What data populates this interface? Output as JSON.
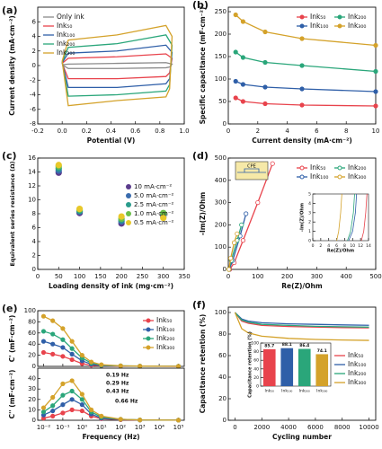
{
  "chart_data": [
    {
      "type": "line",
      "panel": "(a)",
      "xlabel": "Potential (V)",
      "ylabel": "Current density (mA·cm⁻²)",
      "xlim": [
        -0.2,
        1.0
      ],
      "xticks": [
        -0.2,
        {
          "value": 0,
          "label": "0.0"
        },
        0.2,
        0.4,
        0.6,
        0.8,
        {
          "value": 1,
          "label": "1.0"
        }
      ],
      "ylim": [
        -8,
        8
      ],
      "yticks": [
        -8,
        -6,
        -4,
        -2,
        0,
        2,
        4,
        6
      ],
      "legend": "upper left",
      "x": [
        0,
        0.05,
        0.45,
        0.85,
        0.9,
        0.88,
        0.85,
        0.45,
        0.05,
        0
      ],
      "series": [
        {
          "name": "Only ink",
          "color": "#8a8a8a",
          "values": [
            0.1,
            0.2,
            0.3,
            0.4,
            0.2,
            -0.2,
            -0.3,
            -0.4,
            -0.4,
            0.1
          ]
        },
        {
          "name": "Ink₅₀",
          "color": "#e8434c",
          "values": [
            0.3,
            1.0,
            1.2,
            1.6,
            1.0,
            -1.0,
            -1.5,
            -1.8,
            -1.8,
            0.3
          ]
        },
        {
          "name": "Ink₁₀₀",
          "color": "#2f5fa8",
          "values": [
            0.4,
            1.7,
            2.0,
            2.8,
            1.8,
            -1.8,
            -2.5,
            -3.0,
            -3.0,
            0.4
          ]
        },
        {
          "name": "Ink₂₀₀",
          "color": "#2aa67a",
          "values": [
            0.5,
            2.5,
            3.0,
            4.2,
            2.8,
            -2.6,
            -3.5,
            -4.0,
            -4.2,
            0.5
          ]
        },
        {
          "name": "Ink₃₀₀",
          "color": "#d4a22a",
          "values": [
            0.6,
            3.5,
            4.2,
            5.5,
            4.0,
            -3.2,
            -4.3,
            -4.8,
            -5.5,
            0.6
          ]
        }
      ]
    },
    {
      "type": "line",
      "markers": true,
      "panel": "(b)",
      "xlabel": "Current density (mA·cm⁻²)",
      "ylabel": "Specific capacitance (mF·cm⁻²)",
      "xlim": [
        0,
        10
      ],
      "xticks": [
        0,
        2,
        4,
        6,
        8,
        10
      ],
      "ylim": [
        0,
        260
      ],
      "yticks": [
        0,
        50,
        100,
        150,
        200,
        250
      ],
      "legend": "upper right",
      "legend_columns": 2,
      "x": [
        0.5,
        1,
        2.5,
        5,
        10
      ],
      "series": [
        {
          "name": "Ink₅₀",
          "color": "#e8434c",
          "values": [
            58,
            50,
            45,
            42,
            40
          ]
        },
        {
          "name": "Ink₁₀₀",
          "color": "#2f5fa8",
          "values": [
            95,
            88,
            82,
            78,
            72
          ]
        },
        {
          "name": "Ink₂₀₀",
          "color": "#2aa67a",
          "values": [
            160,
            148,
            137,
            130,
            117
          ]
        },
        {
          "name": "Ink₃₀₀",
          "color": "#d4a22a",
          "values": [
            243,
            228,
            205,
            190,
            175
          ]
        }
      ]
    },
    {
      "type": "scatter",
      "panel": "(c)",
      "xlabel": "Loading density of ink (mg·cm⁻²)",
      "ylabel": "Equivalent series resistance (Ω)",
      "xlim": [
        0,
        350
      ],
      "xticks": [
        0,
        50,
        100,
        150,
        200,
        250,
        300,
        350
      ],
      "ylim": [
        0,
        16
      ],
      "yticks": [
        0,
        2,
        4,
        6,
        8,
        10,
        12,
        14,
        16
      ],
      "legend": "center right",
      "x": [
        50,
        100,
        200,
        300
      ],
      "series": [
        {
          "name": "10 mA·cm⁻²",
          "color": "#5b3c8c",
          "values": [
            13.9,
            8.1,
            6.6,
            7.6
          ]
        },
        {
          "name": "5.0 mA·cm⁻²",
          "color": "#3a6cae",
          "values": [
            14.2,
            8.3,
            6.9,
            7.8
          ]
        },
        {
          "name": "2.5 mA·cm⁻²",
          "color": "#2a9c8c",
          "values": [
            14.5,
            8.4,
            7.1,
            8.0
          ]
        },
        {
          "name": "1.0 mA·cm⁻²",
          "color": "#6bbf4a",
          "values": [
            14.8,
            8.6,
            7.3,
            8.1
          ]
        },
        {
          "name": "0.5 mA·cm⁻²",
          "color": "#e8c82a",
          "values": [
            15.0,
            8.7,
            7.6,
            7.4
          ]
        }
      ]
    },
    {
      "type": "line",
      "markers": true,
      "panel": "(d)",
      "xlabel": "Re(Z)/Ohm",
      "ylabel": "-Im(Z)/Ohm",
      "xlim": [
        0,
        500
      ],
      "xticks": [
        0,
        100,
        200,
        300,
        400,
        500
      ],
      "ylim": [
        0,
        500
      ],
      "yticks": [
        0,
        100,
        200,
        300,
        400,
        500
      ],
      "legend": "upper right",
      "legend_columns": 2,
      "annotations": [
        "CPE"
      ],
      "series": [
        {
          "name": "Ink₅₀",
          "color": "#e8434c",
          "x": [
            5,
            20,
            50,
            100,
            150
          ],
          "values": [
            0,
            30,
            130,
            300,
            475
          ]
        },
        {
          "name": "Ink₁₀₀",
          "color": "#2f5fa8",
          "x": [
            3,
            15,
            40,
            60
          ],
          "values": [
            0,
            40,
            150,
            250
          ]
        },
        {
          "name": "Ink₂₀₀",
          "color": "#2aa67a",
          "x": [
            2,
            10,
            30,
            45
          ],
          "values": [
            0,
            40,
            130,
            200
          ]
        },
        {
          "name": "Ink₃₀₀",
          "color": "#d4a22a",
          "x": [
            2,
            8,
            20,
            30
          ],
          "values": [
            0,
            50,
            120,
            160
          ]
        }
      ]
    },
    {
      "type": "line",
      "xlabel": "Re(Z)/Ohm",
      "ylabel": "-Im(Z)/Ohm",
      "xlim": [
        0,
        14
      ],
      "xticks": [
        0,
        2,
        4,
        6,
        8,
        10,
        12,
        14
      ],
      "ylim": [
        0,
        5
      ],
      "yticks": [
        0,
        1,
        2,
        3,
        4,
        5
      ],
      "series": [
        {
          "name": "Ink₅₀",
          "color": "#e8434c",
          "x": [
            12.2,
            12.8,
            13.3,
            13.6
          ],
          "values": [
            0,
            1,
            3,
            5
          ]
        },
        {
          "name": "Ink₁₀₀",
          "color": "#2f5fa8",
          "x": [
            9.0,
            10.0,
            10.7,
            11.0
          ],
          "values": [
            0,
            1,
            3,
            5
          ]
        },
        {
          "name": "Ink₂₀₀",
          "color": "#2aa67a",
          "x": [
            8.7,
            9.5,
            10.2,
            10.5
          ],
          "values": [
            0,
            1,
            3,
            5
          ]
        },
        {
          "name": "Ink₃₀₀",
          "color": "#d4a22a",
          "x": [
            6.0,
            6.5,
            7.0,
            7.3
          ],
          "values": [
            0,
            1,
            3,
            5
          ]
        }
      ]
    },
    {
      "type": "line",
      "markers": true,
      "panel": "(e)",
      "ylabel": "C' (mF·cm⁻²)",
      "log_x": true,
      "show_xtick_labels": false,
      "xlim": [
        0.005,
        200000
      ],
      "xticks": [
        {
          "value": 0.01,
          "label": "10⁻²"
        },
        {
          "value": 0.1,
          "label": "10⁻¹"
        },
        {
          "value": 1,
          "label": "10⁰"
        },
        {
          "value": 10,
          "label": "10¹"
        },
        {
          "value": 100,
          "label": "10²"
        },
        {
          "value": 1000,
          "label": "10³"
        },
        {
          "value": 10000,
          "label": "10⁴"
        },
        {
          "value": 100000,
          "label": "10⁵"
        }
      ],
      "ylim": [
        0,
        100
      ],
      "yticks": [
        0,
        20,
        40,
        60,
        80,
        100
      ],
      "legend": "upper right",
      "x": [
        0.01,
        0.03,
        0.1,
        0.3,
        1,
        3,
        10,
        100,
        1000,
        100000
      ],
      "series": [
        {
          "name": "Ink₅₀",
          "color": "#e8434c",
          "values": [
            25,
            22,
            18,
            12,
            5,
            2,
            1,
            0.5,
            0.3,
            0.1
          ]
        },
        {
          "name": "Ink₁₀₀",
          "color": "#2f5fa8",
          "values": [
            45,
            40,
            34,
            22,
            10,
            4,
            1.5,
            0.8,
            0.4,
            0.2
          ]
        },
        {
          "name": "Ink₂₀₀",
          "color": "#2aa67a",
          "values": [
            63,
            58,
            48,
            32,
            15,
            6,
            2,
            1,
            0.5,
            0.2
          ]
        },
        {
          "name": "Ink₃₀₀",
          "color": "#d4a22a",
          "values": [
            90,
            82,
            68,
            45,
            20,
            8,
            3,
            1,
            0.5,
            0.2
          ]
        }
      ]
    },
    {
      "type": "line",
      "markers": true,
      "xlabel": "Frequency (Hz)",
      "ylabel": "C'' (mF·cm⁻²)",
      "log_x": true,
      "xlim": [
        0.005,
        200000
      ],
      "xticks": [
        {
          "value": 0.01,
          "label": "10⁻²"
        },
        {
          "value": 0.1,
          "label": "10⁻¹"
        },
        {
          "value": 1,
          "label": "10⁰"
        },
        {
          "value": 10,
          "label": "10¹"
        },
        {
          "value": 100,
          "label": "10²"
        },
        {
          "value": 1000,
          "label": "10³"
        },
        {
          "value": 10000,
          "label": "10⁴"
        },
        {
          "value": 100000,
          "label": "10⁵"
        }
      ],
      "ylim": [
        0,
        50
      ],
      "yticks": [
        0,
        10,
        20,
        30,
        40
      ],
      "annotations": [
        "0.19 Hz",
        "0.29 Hz",
        "0.43 Hz",
        "0.66 Hz"
      ],
      "x": [
        0.01,
        0.03,
        0.1,
        0.3,
        1,
        3,
        10,
        100,
        1000,
        100000
      ],
      "series": [
        {
          "name": "Ink₅₀",
          "color": "#e8434c",
          "values": [
            2,
            4,
            7,
            10,
            9,
            4,
            1.5,
            0.5,
            0.2,
            0.1
          ]
        },
        {
          "name": "Ink₁₀₀",
          "color": "#2f5fa8",
          "values": [
            5,
            9,
            15,
            20,
            15,
            6,
            2,
            0.8,
            0.3,
            0.1
          ]
        },
        {
          "name": "Ink₂₀₀",
          "color": "#2aa67a",
          "values": [
            8,
            14,
            24,
            28,
            20,
            8,
            3,
            1,
            0.3,
            0.1
          ]
        },
        {
          "name": "Ink₃₀₀",
          "color": "#d4a22a",
          "values": [
            12,
            22,
            35,
            38,
            25,
            10,
            4,
            1,
            0.3,
            0.1
          ]
        }
      ]
    },
    {
      "type": "line",
      "panel": "(f)",
      "xlabel": "Cycling number",
      "ylabel": "Capacitance retention (%)",
      "xlim": [
        -500,
        10500
      ],
      "xticks": [
        0,
        2000,
        4000,
        6000,
        8000,
        10000
      ],
      "ylim": [
        0,
        105
      ],
      "yticks": [
        0,
        20,
        40,
        60,
        80,
        100
      ],
      "legend": "center right",
      "x": [
        0,
        500,
        1000,
        2000,
        4000,
        6000,
        8000,
        10000
      ],
      "series": [
        {
          "name": "Ink₅₀",
          "color": "#e8434c",
          "values": [
            100,
            92,
            90,
            88,
            87,
            86.5,
            86,
            85.7
          ]
        },
        {
          "name": "Ink₁₀₀",
          "color": "#2f5fa8",
          "values": [
            100,
            94,
            92,
            90.5,
            89.5,
            89,
            88.5,
            88.1
          ]
        },
        {
          "name": "Ink₂₀₀",
          "color": "#2aa67a",
          "values": [
            100,
            93,
            91,
            89,
            88,
            87.2,
            86.8,
            86.4
          ]
        },
        {
          "name": "Ink₃₀₀",
          "color": "#d4a22a",
          "values": [
            100,
            85,
            81,
            78,
            76,
            75,
            74.5,
            74.1
          ]
        }
      ]
    },
    {
      "type": "bar",
      "ylabel": "Capacitance retention (%)",
      "ylim": [
        0,
        100
      ],
      "yticks": [
        0,
        20,
        40,
        60,
        80,
        100
      ],
      "categories": [
        "Ink₅₀",
        "Ink₁₀₀",
        "Ink₂₀₀",
        "Ink₃₀₀"
      ],
      "values": [
        85.7,
        88.1,
        86.4,
        74.1
      ],
      "colors": [
        "#e8434c",
        "#2f5fa8",
        "#2aa67a",
        "#d4a22a"
      ]
    }
  ]
}
